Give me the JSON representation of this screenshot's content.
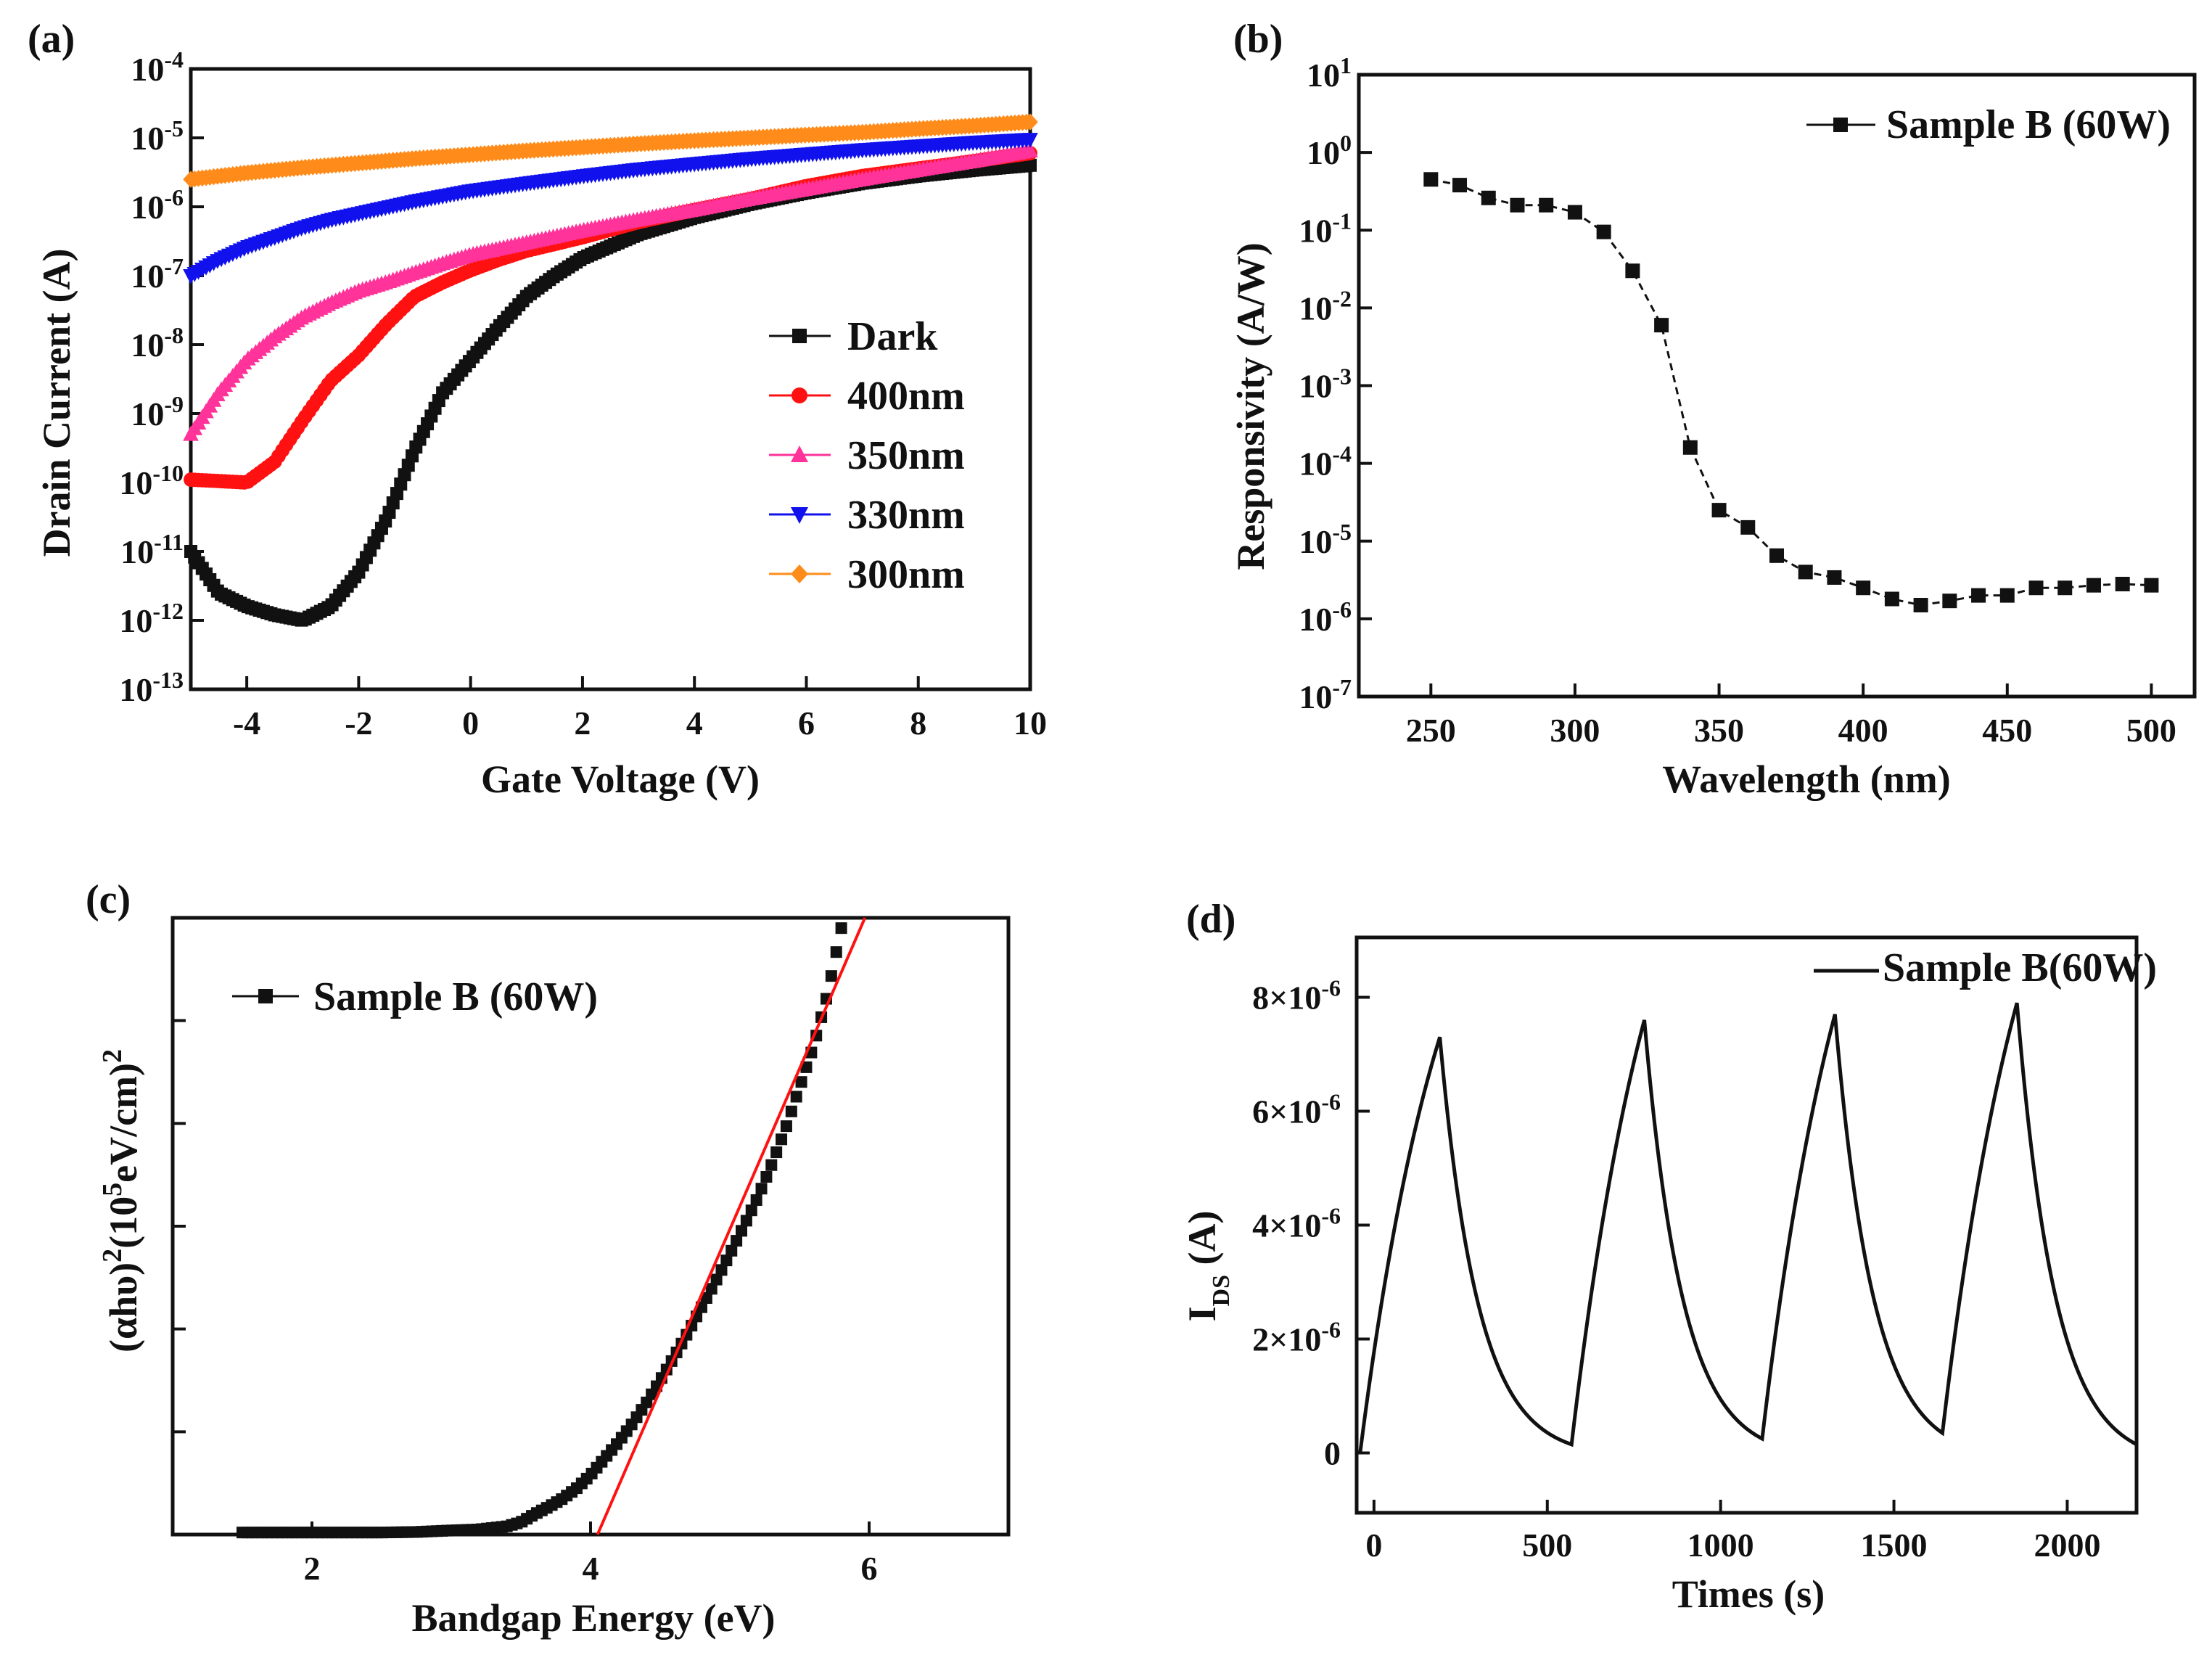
{
  "chart_data": [
    {
      "panel": "(a)",
      "type": "scatter",
      "xlabel": "Gate Voltage (V)",
      "ylabel": "Drain Current (A)",
      "xscale": "linear",
      "yscale": "log",
      "xlim": [
        -5,
        10
      ],
      "ylim": [
        1e-13,
        0.0001
      ],
      "xticks": [
        -4,
        -2,
        0,
        2,
        4,
        6,
        8,
        10
      ],
      "xtick_labels": [
        "-4",
        "-2",
        "0",
        "2",
        "4",
        "6",
        "8",
        "10"
      ],
      "yticks": [
        -4,
        -5,
        -6,
        -7,
        -8,
        -9,
        -10,
        -11,
        -12,
        -13
      ],
      "legend_position": "lower-right",
      "series": [
        {
          "name": "Dark",
          "color": "#111111",
          "marker": "square",
          "x": [
            -5,
            -4.5,
            -4,
            -3.5,
            -3,
            -2.5,
            -2,
            -1.5,
            -1,
            -0.5,
            0,
            0.5,
            1,
            1.5,
            2,
            3,
            4,
            5,
            6,
            7,
            8,
            9,
            10
          ],
          "y": [
            1e-11,
            2.5e-12,
            1.6e-12,
            1.2e-12,
            1e-12,
            1.6e-12,
            5e-12,
            3e-11,
            3e-10,
            2e-09,
            6e-09,
            1.8e-08,
            5e-08,
            1e-07,
            1.8e-07,
            4e-07,
            7e-07,
            1.1e-06,
            1.6e-06,
            2.2e-06,
            2.8e-06,
            3.4e-06,
            4e-06
          ]
        },
        {
          "name": "400nm",
          "color": "#ff1111",
          "marker": "circle",
          "x": [
            -5,
            -4.5,
            -4,
            -3.5,
            -3,
            -2.5,
            -2,
            -1.5,
            -1,
            -0.5,
            0,
            0.5,
            1,
            2,
            3,
            4,
            5,
            6,
            7,
            8,
            9,
            10
          ],
          "y": [
            1.1e-10,
            1.05e-10,
            1e-10,
            2e-10,
            8e-10,
            3e-09,
            7e-09,
            2e-08,
            5e-08,
            8e-08,
            1.2e-07,
            1.7e-07,
            2.3e-07,
            3.6e-07,
            6e-07,
            9e-07,
            1.3e-06,
            2e-06,
            2.8e-06,
            3.6e-06,
            4.6e-06,
            6e-06
          ]
        },
        {
          "name": "350nm",
          "color": "#ff3399",
          "marker": "triangle-up",
          "x": [
            -5,
            -4.5,
            -4,
            -3.5,
            -3,
            -2.5,
            -2,
            -1.5,
            -1,
            -0.5,
            0,
            1,
            2,
            3,
            4,
            5,
            6,
            7,
            8,
            9,
            10
          ],
          "y": [
            5e-10,
            2e-09,
            6e-09,
            1.3e-08,
            2.5e-08,
            4e-08,
            6e-08,
            8e-08,
            1.1e-07,
            1.5e-07,
            2e-07,
            3e-07,
            4.5e-07,
            6.5e-07,
            9e-07,
            1.3e-06,
            1.8e-06,
            2.5e-06,
            3.4e-06,
            4.6e-06,
            6.5e-06
          ]
        },
        {
          "name": "330nm",
          "color": "#1111ee",
          "marker": "triangle-down",
          "x": [
            -5,
            -4.5,
            -4,
            -3.5,
            -3,
            -2.5,
            -2,
            -1,
            0,
            1,
            2,
            3,
            4,
            5,
            6,
            7,
            8,
            9,
            10
          ],
          "y": [
            1e-07,
            1.7e-07,
            2.6e-07,
            3.6e-07,
            5e-07,
            6.5e-07,
            8e-07,
            1.2e-06,
            1.7e-06,
            2.2e-06,
            2.8e-06,
            3.5e-06,
            4.2e-06,
            5e-06,
            5.8e-06,
            6.7e-06,
            7.6e-06,
            8.6e-06,
            9.5e-06
          ]
        },
        {
          "name": "300nm",
          "color": "#ff8c1a",
          "marker": "diamond",
          "x": [
            -5,
            -4,
            -3,
            -2,
            -1,
            0,
            1,
            2,
            3,
            4,
            5,
            6,
            7,
            8,
            9,
            10
          ],
          "y": [
            2.5e-06,
            3.1e-06,
            3.7e-06,
            4.3e-06,
            5e-06,
            5.7e-06,
            6.5e-06,
            7.3e-06,
            8.2e-06,
            9.1e-06,
            1e-05,
            1.1e-05,
            1.2e-05,
            1.35e-05,
            1.5e-05,
            1.7e-05
          ]
        }
      ]
    },
    {
      "panel": "(b)",
      "type": "line",
      "xlabel": "Wavelength (nm)",
      "ylabel": "Responsivity (A/W)",
      "xscale": "linear",
      "yscale": "log",
      "xlim": [
        225,
        515
      ],
      "ylim": [
        1e-07,
        10
      ],
      "xticks": [
        250,
        300,
        350,
        400,
        450,
        500
      ],
      "yticks": [
        1,
        0,
        -1,
        -2,
        -3,
        -4,
        -5,
        -6,
        -7
      ],
      "legend_position": "top-right",
      "series": [
        {
          "name": "Sample B (60W)",
          "color": "#111111",
          "marker": "square",
          "line": "dashed",
          "x": [
            250,
            260,
            270,
            280,
            290,
            300,
            310,
            320,
            330,
            340,
            350,
            360,
            370,
            380,
            390,
            400,
            410,
            420,
            430,
            440,
            450,
            460,
            470,
            480,
            490,
            500
          ],
          "y": [
            0.45,
            0.38,
            0.26,
            0.21,
            0.21,
            0.17,
            0.095,
            0.03,
            0.006,
            0.00016,
            2.5e-05,
            1.5e-05,
            6.5e-06,
            4e-06,
            3.4e-06,
            2.5e-06,
            1.8e-06,
            1.5e-06,
            1.7e-06,
            2e-06,
            2e-06,
            2.5e-06,
            2.5e-06,
            2.7e-06,
            2.8e-06,
            2.7e-06
          ]
        }
      ]
    },
    {
      "panel": "(c)",
      "type": "scatter",
      "xlabel": "Bandgap Energy (eV)",
      "ylabel_prefix": "(αhυ)",
      "ylabel_sup1": "2",
      "ylabel_mid": "(10",
      "ylabel_sup2": "5",
      "ylabel_suffix": "eV/cm)",
      "ylabel_sup3": "2",
      "xlim": [
        1,
        7
      ],
      "ylim": [
        0,
        6
      ],
      "xticks": [
        2,
        4,
        6
      ],
      "legend_position": "top-left",
      "series": [
        {
          "name": "Sample B (60W)",
          "color": "#111111",
          "marker": "square",
          "x": [
            1.5,
            1.75,
            2,
            2.25,
            2.5,
            2.75,
            3,
            3.2,
            3.4,
            3.5,
            3.6,
            3.7,
            3.8,
            3.9,
            4,
            4.1,
            4.2,
            4.3,
            4.4,
            4.5,
            4.6,
            4.7,
            4.8,
            4.9,
            5,
            5.1,
            5.2,
            5.3,
            5.4,
            5.5,
            5.6,
            5.7,
            5.8
          ],
          "y": [
            0.02,
            0.02,
            0.02,
            0.02,
            0.02,
            0.025,
            0.04,
            0.05,
            0.08,
            0.12,
            0.2,
            0.27,
            0.35,
            0.45,
            0.58,
            0.74,
            0.9,
            1.08,
            1.28,
            1.5,
            1.73,
            1.97,
            2.22,
            2.47,
            2.73,
            3.0,
            3.28,
            3.6,
            3.95,
            4.35,
            4.75,
            5.25,
            5.9
          ]
        }
      ],
      "fit_line": {
        "color": "#ff1111",
        "x": [
          4.05,
          5.97
        ],
        "y": [
          0,
          6.0
        ]
      }
    },
    {
      "panel": "(d)",
      "type": "line",
      "xlabel": "Times (s)",
      "ylabel_main": "I",
      "ylabel_sub": "DS",
      "ylabel_unit": " (A)",
      "xlim": [
        -50,
        2200
      ],
      "ylim": [
        -1.05e-06,
        9.05e-06
      ],
      "xticks": [
        0,
        500,
        1000,
        1500,
        2000
      ],
      "xtick_labels": [
        "0",
        "500",
        "1000",
        "1500",
        "2000"
      ],
      "yticks": [
        0,
        2e-06,
        4e-06,
        6e-06,
        8e-06
      ],
      "ytick_labels": [
        {
          "zero": "0"
        },
        {
          "mantissa": "2×10",
          "exp": "-6"
        },
        {
          "mantissa": "4×10",
          "exp": "-6"
        },
        {
          "mantissa": "6×10",
          "exp": "-6"
        },
        {
          "mantissa": "8×10",
          "exp": "-6"
        }
      ],
      "legend_position": "top-right",
      "series": [
        {
          "name": "Sample B(60W)",
          "color": "#111111",
          "cycles": [
            {
              "on_start": -40,
              "off_start": 190,
              "end": 570,
              "i_min": 0,
              "i_peak": 7.3e-06,
              "i_end": 1.5e-07
            },
            {
              "on_start": 570,
              "off_start": 780,
              "end": 1120,
              "i_min": 1.5e-07,
              "i_peak": 7.6e-06,
              "i_end": 2.5e-07
            },
            {
              "on_start": 1120,
              "off_start": 1330,
              "end": 1640,
              "i_min": 2.5e-07,
              "i_peak": 7.7e-06,
              "i_end": 3.5e-07
            },
            {
              "on_start": 1640,
              "off_start": 1855,
              "end": 2200,
              "i_min": 3.5e-07,
              "i_peak": 7.9e-06,
              "i_end": 1.5e-07
            }
          ]
        }
      ]
    }
  ]
}
